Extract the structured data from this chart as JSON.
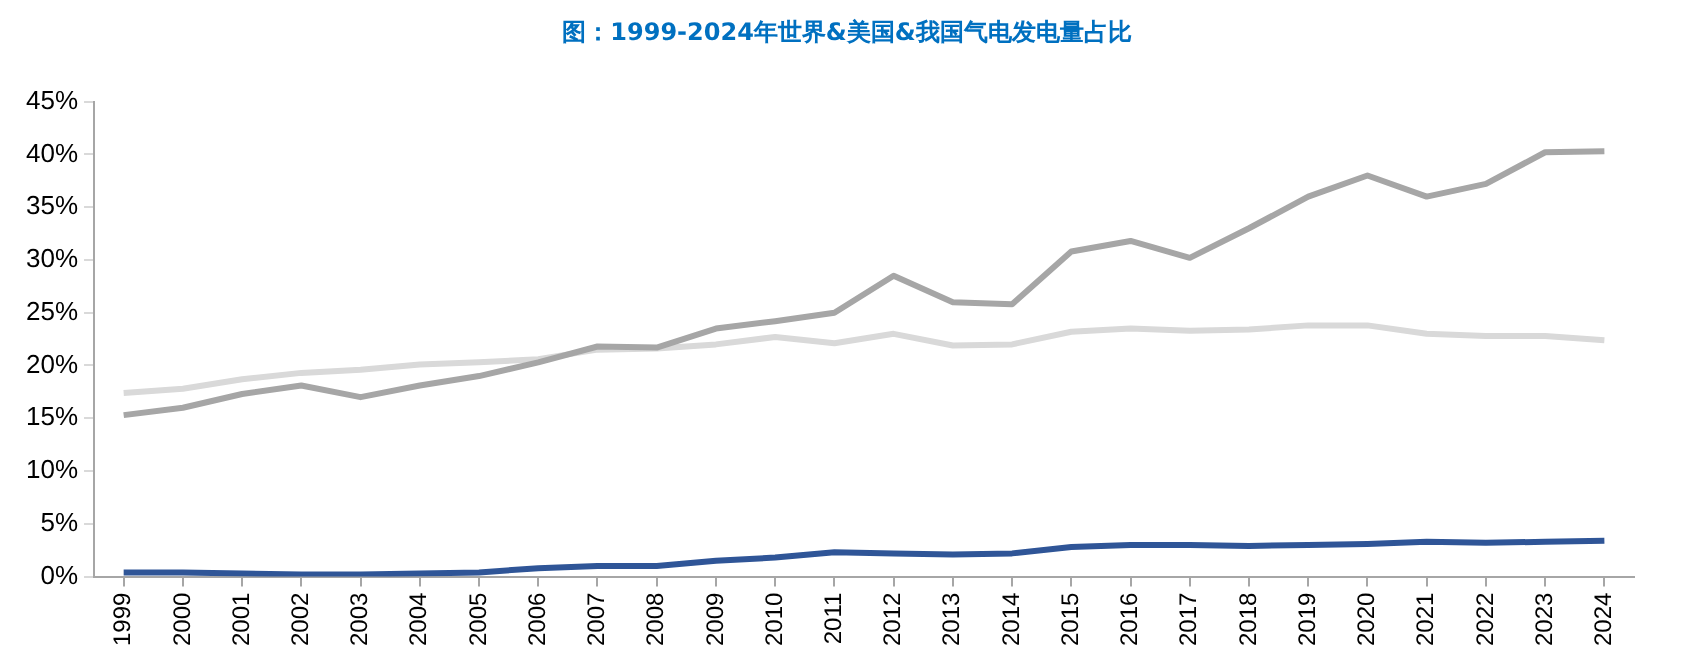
{
  "chart_data": {
    "type": "line",
    "title": "图：1999-2024年世界&美国&我国气电发电量占比",
    "categories": [
      "1999",
      "2000",
      "2001",
      "2002",
      "2003",
      "2004",
      "2005",
      "2006",
      "2007",
      "2008",
      "2009",
      "2010",
      "2011",
      "2012",
      "2013",
      "2014",
      "2015",
      "2016",
      "2017",
      "2018",
      "2019",
      "2020",
      "2021",
      "2022",
      "2023",
      "2024"
    ],
    "series": [
      {
        "color": "#a6a6a6",
        "values": [
          15.3,
          16.0,
          17.3,
          18.1,
          17.0,
          18.1,
          19.0,
          20.3,
          21.8,
          21.7,
          23.5,
          24.2,
          25.0,
          28.5,
          26.0,
          25.8,
          30.8,
          31.8,
          30.2,
          33.0,
          36.0,
          38.0,
          36.0,
          37.2,
          40.2,
          40.3
        ]
      },
      {
        "color": "#d9d9d9",
        "values": [
          17.4,
          17.8,
          18.7,
          19.3,
          19.6,
          20.1,
          20.3,
          20.6,
          21.5,
          21.6,
          22.0,
          22.7,
          22.1,
          23.0,
          21.9,
          22.0,
          23.2,
          23.5,
          23.3,
          23.4,
          23.8,
          23.8,
          23.0,
          22.8,
          22.8,
          22.4
        ]
      },
      {
        "color": "#2f5597",
        "values": [
          0.4,
          0.4,
          0.3,
          0.2,
          0.2,
          0.3,
          0.4,
          0.8,
          1.0,
          1.0,
          1.5,
          1.8,
          2.3,
          2.2,
          2.1,
          2.2,
          2.8,
          3.0,
          3.0,
          2.9,
          3.0,
          3.1,
          3.3,
          3.2,
          3.3,
          3.4
        ]
      }
    ],
    "ylim": [
      0,
      45
    ],
    "yticks": [
      {
        "value": 0,
        "label": "0%"
      },
      {
        "value": 5,
        "label": "5%"
      },
      {
        "value": 10,
        "label": "10%"
      },
      {
        "value": 15,
        "label": "15%"
      },
      {
        "value": 20,
        "label": "20%"
      },
      {
        "value": 25,
        "label": "25%"
      },
      {
        "value": 30,
        "label": "30%"
      },
      {
        "value": 35,
        "label": "35%"
      },
      {
        "value": 40,
        "label": "40%"
      },
      {
        "value": 45,
        "label": "45%"
      }
    ],
    "grid": false,
    "legend": false,
    "marker": "none",
    "line_style": "solid"
  }
}
